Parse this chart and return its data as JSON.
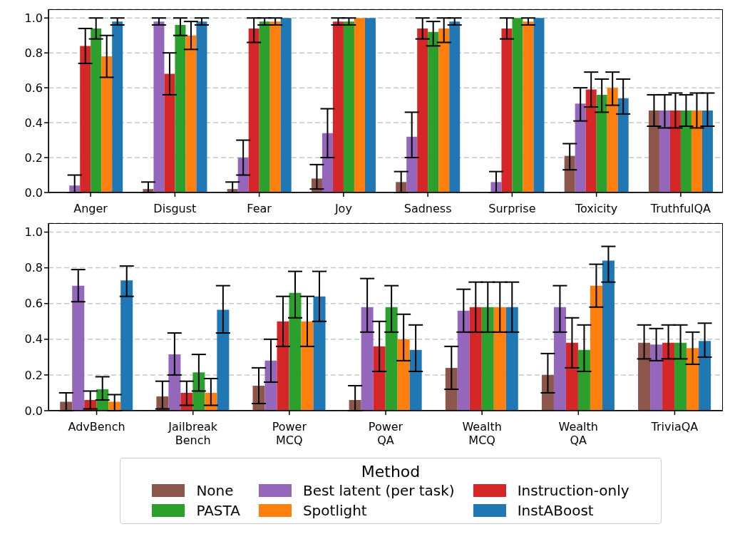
{
  "chart_data": [
    {
      "type": "bar",
      "categories": [
        "Anger",
        "Disgust",
        "Fear",
        "Joy",
        "Sadness",
        "Surprise",
        "Toxicity",
        "TruthfulQA"
      ],
      "ylim": [
        0,
        1.05
      ],
      "yticks": [
        {
          "value": 0,
          "label": "0.0"
        },
        {
          "value": 0.2,
          "label": "0.2"
        },
        {
          "value": 0.4,
          "label": "0.4"
        },
        {
          "value": 0.6,
          "label": "0.6"
        },
        {
          "value": 0.8,
          "label": "0.8"
        },
        {
          "value": 1,
          "label": "1.0"
        }
      ],
      "grid": "y",
      "series": [
        {
          "color": "#8c564b",
          "values": [
            null,
            0.02,
            0.02,
            0.08,
            0.06,
            null,
            0.21,
            0.47
          ],
          "errors": [
            null,
            [
              0,
              0.06
            ],
            [
              0,
              0.06
            ],
            [
              0.02,
              0.16
            ],
            [
              0,
              0.12
            ],
            null,
            [
              0.13,
              0.28
            ],
            [
              0.38,
              0.56
            ]
          ]
        },
        {
          "color": "#9467bd",
          "values": [
            0.04,
            0.98,
            0.2,
            0.34,
            0.32,
            0.06,
            0.51,
            0.47
          ],
          "errors": [
            [
              0,
              0.1
            ],
            [
              0.96,
              1
            ],
            [
              0.1,
              0.3
            ],
            [
              0.2,
              0.48
            ],
            [
              0.2,
              0.46
            ],
            [
              0,
              0.12
            ],
            [
              0.41,
              0.6
            ],
            [
              0.37,
              0.56
            ]
          ]
        },
        {
          "color": "#d62728",
          "values": [
            0.84,
            0.68,
            0.94,
            0.98,
            0.94,
            0.94,
            0.59,
            0.47
          ],
          "errors": [
            [
              0.74,
              0.94
            ],
            [
              0.56,
              0.8
            ],
            [
              0.86,
              1
            ],
            [
              0.96,
              1
            ],
            [
              0.88,
              1
            ],
            [
              0.88,
              1
            ],
            [
              0.49,
              0.69
            ],
            [
              0.37,
              0.57
            ]
          ]
        },
        {
          "color": "#2ca02c",
          "values": [
            0.94,
            0.96,
            0.98,
            0.98,
            0.92,
            1,
            0.56,
            0.47
          ],
          "errors": [
            [
              0.88,
              1
            ],
            [
              0.9,
              1
            ],
            [
              0.96,
              1
            ],
            [
              0.96,
              1
            ],
            [
              0.84,
              0.98
            ],
            null,
            [
              0.46,
              0.65
            ],
            [
              0.38,
              0.56
            ]
          ]
        },
        {
          "color": "#ff7f0e",
          "values": [
            0.78,
            0.9,
            0.98,
            1,
            0.94,
            0.98,
            0.6,
            0.47
          ],
          "errors": [
            [
              0.66,
              0.9
            ],
            [
              0.82,
              0.98
            ],
            [
              0.96,
              1
            ],
            null,
            [
              0.86,
              1
            ],
            [
              0.96,
              1
            ],
            [
              0.5,
              0.69
            ],
            [
              0.37,
              0.57
            ]
          ]
        },
        {
          "color": "#1f77b4",
          "values": [
            0.98,
            0.98,
            1,
            1,
            0.98,
            1,
            0.54,
            0.47
          ],
          "errors": [
            [
              0.96,
              1
            ],
            [
              0.96,
              1
            ],
            null,
            null,
            [
              0.96,
              1
            ],
            null,
            [
              0.45,
              0.65
            ],
            [
              0.38,
              0.57
            ]
          ]
        }
      ]
    },
    {
      "type": "bar",
      "categories": [
        "AdvBench",
        "Jailbreak\nBench",
        "Power\nMCQ",
        "Power\nQA",
        "Wealth\nMCQ",
        "Wealth\nQA",
        "TriviaQA"
      ],
      "ylim": [
        0,
        1.05
      ],
      "yticks": [
        {
          "value": 0,
          "label": "0.0"
        },
        {
          "value": 0.2,
          "label": "0.2"
        },
        {
          "value": 0.4,
          "label": "0.4"
        },
        {
          "value": 0.6,
          "label": "0.6"
        },
        {
          "value": 0.8,
          "label": "0.8"
        },
        {
          "value": 1,
          "label": "1.0"
        }
      ],
      "grid": "y",
      "legend": "bottom",
      "legend_title": "Method",
      "series": [
        {
          "name": "None",
          "color": "#8c564b",
          "values": [
            0.05,
            0.08,
            0.14,
            0.06,
            0.24,
            0.2,
            0.38
          ],
          "errors": [
            [
              0,
              0.1
            ],
            [
              0.01,
              0.165
            ],
            [
              0.04,
              0.24
            ],
            [
              0,
              0.14
            ],
            [
              0.12,
              0.36
            ],
            [
              0.1,
              0.32
            ],
            [
              0.29,
              0.48
            ]
          ]
        },
        {
          "name": "Best latent (per task)",
          "color": "#9467bd",
          "values": [
            0.7,
            0.315,
            0.28,
            0.58,
            0.56,
            0.58,
            0.37
          ],
          "errors": [
            [
              0.61,
              0.79
            ],
            [
              0.2,
              0.435
            ],
            [
              0.16,
              0.4
            ],
            [
              0.44,
              0.74
            ],
            [
              0.44,
              0.68
            ],
            [
              0.44,
              0.7
            ],
            [
              0.28,
              0.46
            ]
          ]
        },
        {
          "name": "Instruction-only",
          "color": "#d62728",
          "values": [
            0.06,
            0.1,
            0.5,
            0.36,
            0.58,
            0.38,
            0.38
          ],
          "errors": [
            [
              0.01,
              0.11
            ],
            [
              0.03,
              0.165
            ],
            [
              0.36,
              0.64
            ],
            [
              0.22,
              0.5
            ],
            [
              0.44,
              0.72
            ],
            [
              0.24,
              0.52
            ],
            [
              0.29,
              0.48
            ]
          ]
        },
        {
          "name": "PASTA",
          "color": "#2ca02c",
          "values": [
            0.12,
            0.215,
            0.66,
            0.58,
            0.58,
            0.34,
            0.38
          ],
          "errors": [
            [
              0.06,
              0.19
            ],
            [
              0.11,
              0.315
            ],
            [
              0.52,
              0.78
            ],
            [
              0.44,
              0.7
            ],
            [
              0.44,
              0.72
            ],
            [
              0.22,
              0.48
            ],
            [
              0.29,
              0.48
            ]
          ]
        },
        {
          "name": "Spotlight",
          "color": "#ff7f0e",
          "values": [
            0.05,
            0.1,
            0.5,
            0.4,
            0.58,
            0.7,
            0.35
          ],
          "errors": [
            [
              0,
              0.09
            ],
            [
              0.03,
              0.18
            ],
            [
              0.36,
              0.64
            ],
            [
              0.28,
              0.54
            ],
            [
              0.44,
              0.72
            ],
            [
              0.58,
              0.82
            ],
            [
              0.26,
              0.44
            ]
          ]
        },
        {
          "name": "InstABoost",
          "color": "#1f77b4",
          "values": [
            0.73,
            0.565,
            0.64,
            0.34,
            0.58,
            0.84,
            0.39
          ],
          "errors": [
            [
              0.64,
              0.81
            ],
            [
              0.435,
              0.7
            ],
            [
              0.5,
              0.78
            ],
            [
              0.22,
              0.48
            ],
            [
              0.44,
              0.72
            ],
            [
              0.72,
              0.92
            ],
            [
              0.3,
              0.49
            ]
          ]
        }
      ]
    }
  ]
}
